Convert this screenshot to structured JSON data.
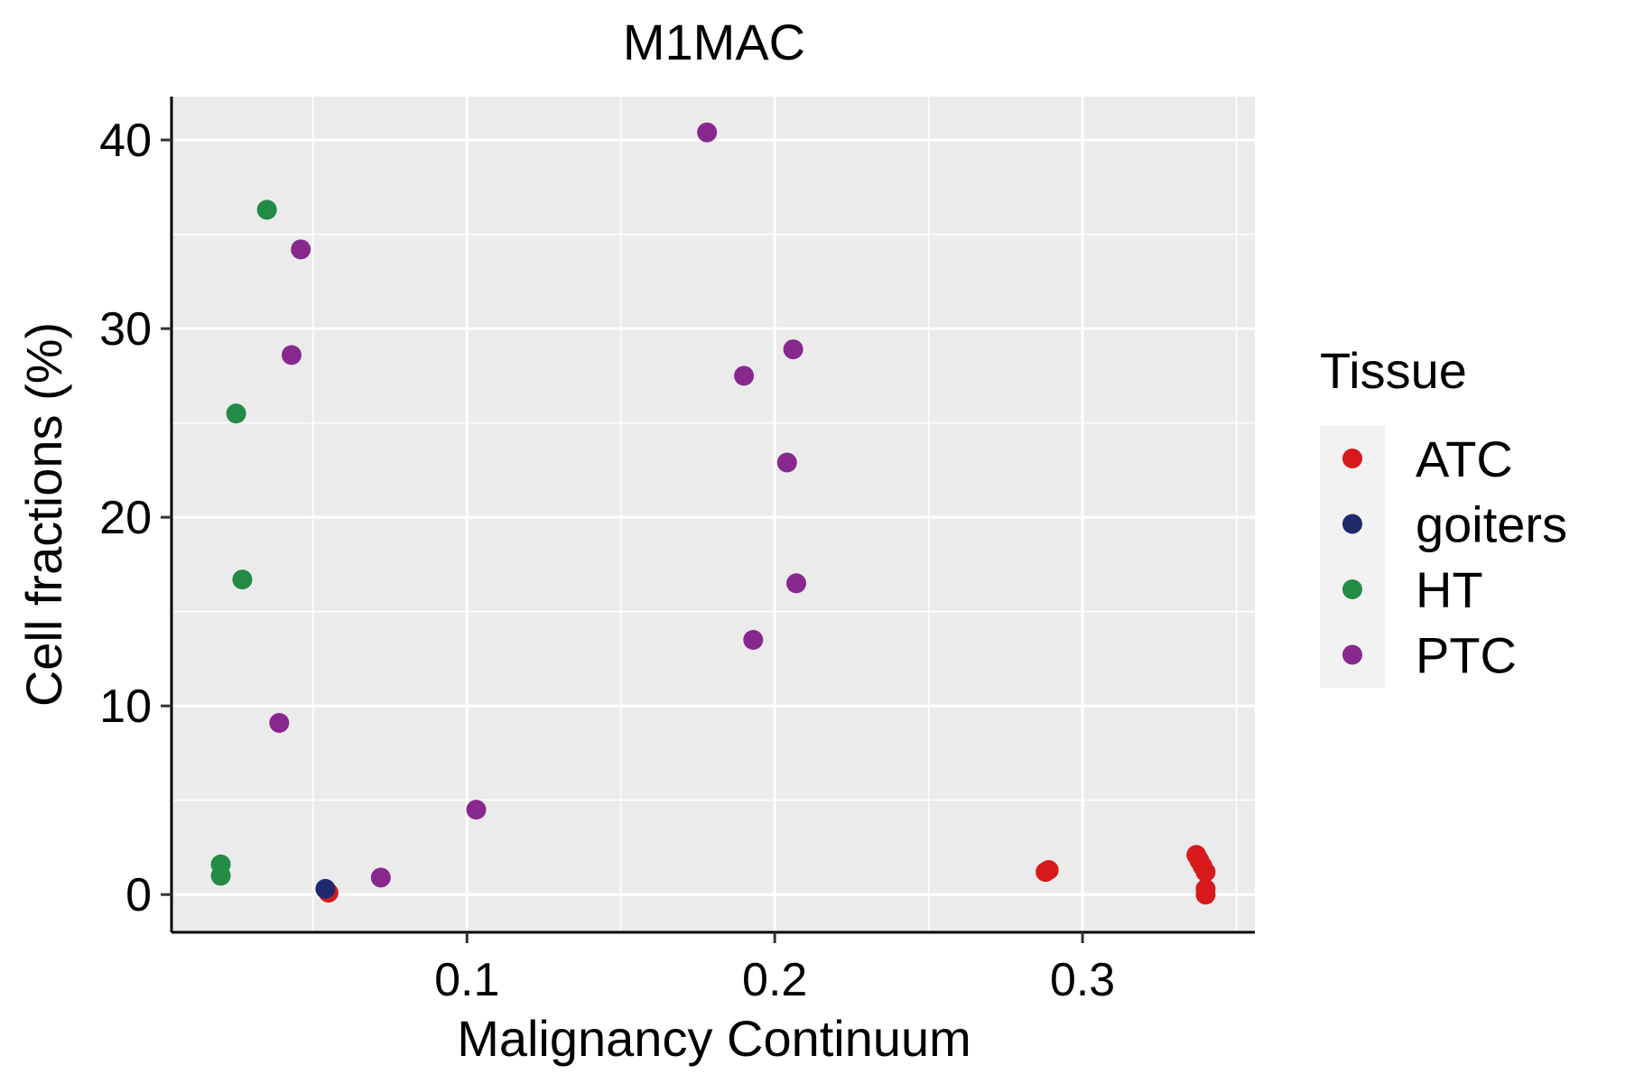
{
  "chart_data": {
    "type": "scatter",
    "title": "M1MAC",
    "xlabel": "Malignancy Continuum",
    "ylabel": "Cell fractions (%)",
    "xlim": [
      0.004,
      0.356
    ],
    "ylim": [
      -2.0,
      42.3
    ],
    "x_ticks": [
      0.1,
      0.2,
      0.3
    ],
    "x_tick_labels": [
      "0.1",
      "0.2",
      "0.3"
    ],
    "y_ticks": [
      0,
      10,
      20,
      30,
      40
    ],
    "y_tick_labels": [
      "0",
      "10",
      "20",
      "30",
      "40"
    ],
    "grid": true,
    "legend": {
      "title": "Tissue",
      "position": "right",
      "entries": [
        {
          "name": "ATC",
          "color": "#d7191c"
        },
        {
          "name": "goiters",
          "color": "#1f2a6b"
        },
        {
          "name": "HT",
          "color": "#238b45"
        },
        {
          "name": "PTC",
          "color": "#88288f"
        }
      ]
    },
    "series": [
      {
        "name": "ATC",
        "color": "#d7191c",
        "points": [
          {
            "x": 0.055,
            "y": 0.1
          },
          {
            "x": 0.288,
            "y": 1.2
          },
          {
            "x": 0.289,
            "y": 1.3
          },
          {
            "x": 0.337,
            "y": 2.1
          },
          {
            "x": 0.338,
            "y": 1.8
          },
          {
            "x": 0.339,
            "y": 1.5
          },
          {
            "x": 0.34,
            "y": 1.2
          },
          {
            "x": 0.34,
            "y": 0.3
          },
          {
            "x": 0.34,
            "y": 0.0
          }
        ]
      },
      {
        "name": "goiters",
        "color": "#1f2a6b",
        "points": [
          {
            "x": 0.054,
            "y": 0.3
          }
        ]
      },
      {
        "name": "HT",
        "color": "#238b45",
        "points": [
          {
            "x": 0.02,
            "y": 1.6
          },
          {
            "x": 0.02,
            "y": 1.0
          },
          {
            "x": 0.025,
            "y": 25.5
          },
          {
            "x": 0.027,
            "y": 16.7
          },
          {
            "x": 0.035,
            "y": 36.3
          }
        ]
      },
      {
        "name": "PTC",
        "color": "#88288f",
        "points": [
          {
            "x": 0.039,
            "y": 9.1
          },
          {
            "x": 0.043,
            "y": 28.6
          },
          {
            "x": 0.046,
            "y": 34.2
          },
          {
            "x": 0.072,
            "y": 0.9
          },
          {
            "x": 0.103,
            "y": 4.5
          },
          {
            "x": 0.178,
            "y": 40.4
          },
          {
            "x": 0.19,
            "y": 27.5
          },
          {
            "x": 0.193,
            "y": 13.5
          },
          {
            "x": 0.204,
            "y": 22.9
          },
          {
            "x": 0.206,
            "y": 28.9
          },
          {
            "x": 0.207,
            "y": 16.5
          }
        ]
      }
    ]
  }
}
